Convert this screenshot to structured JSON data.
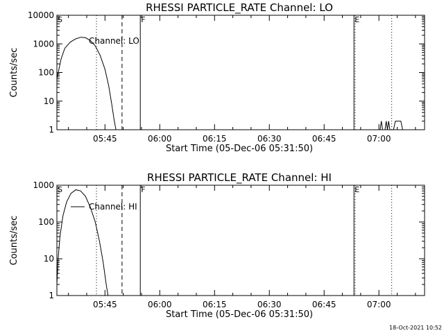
{
  "chart_data": [
    {
      "type": "line",
      "title": "RHESSI PARTICLE_RATE Channel: LO",
      "xlabel": "Start Time (05-Dec-06 05:31:50)",
      "ylabel": "Counts/sec",
      "yscale": "log",
      "ylim": [
        1,
        10000
      ],
      "xlim": [
        "05:31:50",
        "07:12:30"
      ],
      "x_tick_labels": [
        "05:45",
        "06:00",
        "06:15",
        "06:30",
        "06:45",
        "07:00"
      ],
      "y_tick_labels": [
        "1",
        "10",
        "100",
        "1000",
        "10000"
      ],
      "legend": "Channel: LO",
      "legend_line": false,
      "markers": [
        {
          "label": "S",
          "time": "05:31:50",
          "style": "solid"
        },
        {
          "label": "",
          "time": "05:42:40",
          "style": "dotted"
        },
        {
          "label": "",
          "time": "05:49:40",
          "style": "dashed"
        },
        {
          "label": "F",
          "time": "05:54:40",
          "style": "solid"
        },
        {
          "label": "E",
          "time": "06:53:10",
          "style": "solid"
        },
        {
          "label": "",
          "time": "06:53:30",
          "style": "dotted"
        },
        {
          "label": "",
          "time": "07:03:30",
          "style": "dotted"
        }
      ],
      "series": [
        {
          "points": [
            [
              "05:31:50",
              60
            ],
            [
              "05:33:00",
              300
            ],
            [
              "05:34:00",
              700
            ],
            [
              "05:35:30",
              1150
            ],
            [
              "05:37:00",
              1500
            ],
            [
              "05:38:20",
              1700
            ],
            [
              "05:39:40",
              1650
            ],
            [
              "05:41:00",
              1300
            ],
            [
              "05:42:20",
              850
            ],
            [
              "05:43:40",
              400
            ],
            [
              "05:45:00",
              130
            ],
            [
              "05:46:00",
              35
            ],
            [
              "05:46:50",
              8
            ],
            [
              "05:47:30",
              2.2
            ],
            [
              "05:48:00",
              1
            ]
          ]
        },
        {
          "points": [
            [
              "07:00:20",
              1
            ],
            [
              "07:00:40",
              2
            ],
            [
              "07:01:00",
              1
            ],
            [
              "07:01:40",
              1
            ],
            [
              "07:02:00",
              2
            ],
            [
              "07:02:20",
              1
            ],
            [
              "07:02:40",
              2
            ],
            [
              "07:03:00",
              1
            ]
          ]
        },
        {
          "points": [
            [
              "07:04:00",
              1
            ],
            [
              "07:04:30",
              2
            ],
            [
              "07:05:20",
              2
            ],
            [
              "07:06:00",
              2
            ],
            [
              "07:06:30",
              1
            ]
          ]
        }
      ]
    },
    {
      "type": "line",
      "title": "RHESSI PARTICLE_RATE Channel: HI",
      "xlabel": "Start Time (05-Dec-06 05:31:50)",
      "ylabel": "Counts/sec",
      "yscale": "log",
      "ylim": [
        1,
        1000
      ],
      "xlim": [
        "05:31:50",
        "07:12:30"
      ],
      "x_tick_labels": [
        "05:45",
        "06:00",
        "06:15",
        "06:30",
        "06:45",
        "07:00"
      ],
      "y_tick_labels": [
        "1",
        "10",
        "100",
        "1000"
      ],
      "legend": "Channel: HI",
      "legend_line": true,
      "markers": [
        {
          "label": "S",
          "time": "05:31:50",
          "style": "solid"
        },
        {
          "label": "",
          "time": "05:42:40",
          "style": "dotted"
        },
        {
          "label": "",
          "time": "05:49:40",
          "style": "dashed"
        },
        {
          "label": "F",
          "time": "05:54:40",
          "style": "solid"
        },
        {
          "label": "E",
          "time": "06:53:10",
          "style": "solid"
        },
        {
          "label": "",
          "time": "06:53:30",
          "style": "dotted"
        },
        {
          "label": "",
          "time": "07:03:30",
          "style": "dotted"
        }
      ],
      "series": [
        {
          "points": [
            [
              "05:31:50",
              2
            ],
            [
              "05:32:10",
              10
            ],
            [
              "05:32:40",
              40
            ],
            [
              "05:33:30",
              150
            ],
            [
              "05:34:30",
              350
            ],
            [
              "05:35:40",
              600
            ],
            [
              "05:37:00",
              750
            ],
            [
              "05:38:20",
              700
            ],
            [
              "05:39:40",
              500
            ],
            [
              "05:41:00",
              250
            ],
            [
              "05:42:20",
              100
            ],
            [
              "05:43:30",
              30
            ],
            [
              "05:44:30",
              8
            ],
            [
              "05:45:20",
              2
            ],
            [
              "05:45:50",
              1
            ]
          ]
        }
      ]
    }
  ],
  "timestamp": "18-Oct-2021 10:52"
}
